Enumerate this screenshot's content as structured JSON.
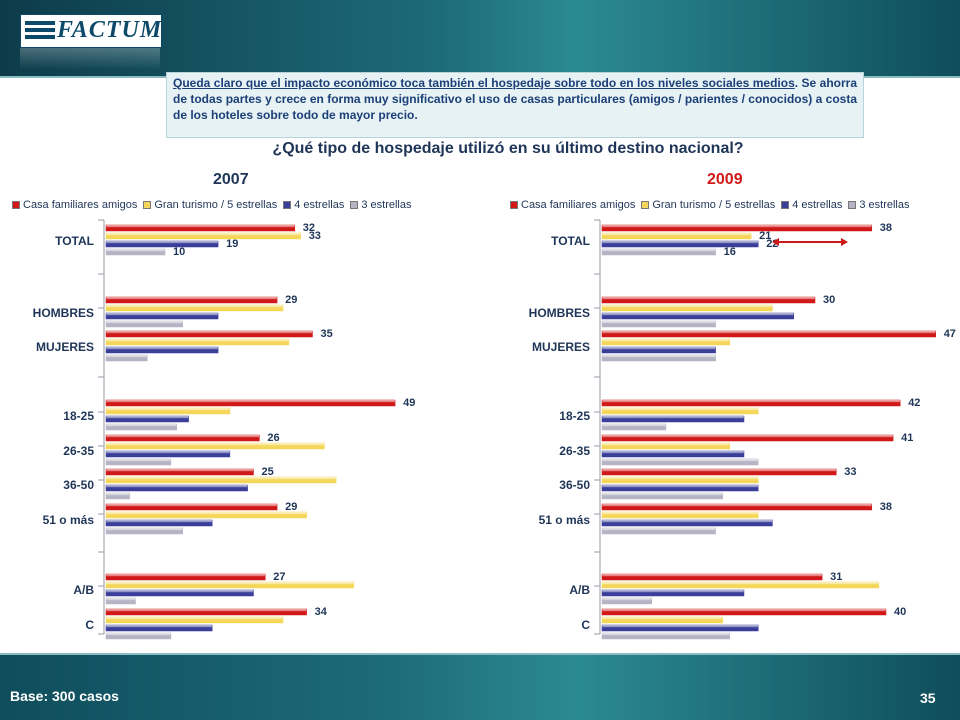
{
  "logo_text": "FACTUM",
  "note": {
    "underlined": "Queda claro que el impacto económico toca también el hospedaje sobre todo en los niveles sociales medios",
    "rest": ". Se ahorra de todas partes y crece en forma muy significativo el uso de casas particulares (amigos / parientes / conocidos) a costa de los hoteles sobre todo de mayor precio."
  },
  "question": "¿Qué tipo de hospedaje utilizó en su último destino nacional?",
  "footer": {
    "base": "Base: 300 casos",
    "page": "35"
  },
  "colors": {
    "red": "#d01818",
    "yellow": "#f4d75a",
    "blue": "#3a3f9a",
    "gray": "#b4b4c4",
    "year2007": "#1f3557",
    "year2009": "#d01818"
  },
  "chart_data": [
    {
      "type": "bar",
      "title": "2007",
      "legend": [
        "Casa familiares amigos",
        "Gran turismo / 5 estrellas",
        "4 estrellas",
        "3 estrellas"
      ],
      "legend_placement": "top",
      "groups": [
        {
          "name": "TOTAL",
          "values": [
            32,
            33,
            19,
            10
          ],
          "labels": [
            "32",
            "33",
            "19",
            "10"
          ]
        },
        {
          "name": "HOMBRES",
          "values": [
            29,
            30,
            19,
            13
          ],
          "labels": [
            "29",
            "",
            "",
            ""
          ]
        },
        {
          "name": "MUJERES",
          "values": [
            35,
            31,
            19,
            7
          ],
          "labels": [
            "35",
            "",
            "",
            ""
          ]
        },
        {
          "name": "18-25",
          "values": [
            49,
            21,
            14,
            12
          ],
          "labels": [
            "49",
            "",
            "",
            ""
          ]
        },
        {
          "name": "26-35",
          "values": [
            26,
            37,
            21,
            11
          ],
          "labels": [
            "26",
            "",
            "",
            ""
          ]
        },
        {
          "name": "36-50",
          "values": [
            25,
            39,
            24,
            4
          ],
          "labels": [
            "25",
            "",
            "",
            ""
          ]
        },
        {
          "name": "51 o más",
          "values": [
            29,
            34,
            18,
            13
          ],
          "labels": [
            "29",
            "",
            "",
            ""
          ]
        },
        {
          "name": "A/B",
          "values": [
            27,
            42,
            25,
            5
          ],
          "labels": [
            "27",
            "",
            "",
            ""
          ]
        },
        {
          "name": "C",
          "values": [
            34,
            30,
            18,
            11
          ],
          "labels": [
            "34",
            "",
            "",
            ""
          ]
        }
      ],
      "xlim": [
        0,
        55
      ]
    },
    {
      "type": "bar",
      "title": "2009",
      "legend": [
        "Casa familiares amigos",
        "Gran turismo / 5 estrellas",
        "4 estrellas",
        "3 estrellas"
      ],
      "legend_placement": "top",
      "groups": [
        {
          "name": "TOTAL",
          "values": [
            38,
            21,
            22,
            16
          ],
          "labels": [
            "38",
            "21",
            "22",
            "16"
          ]
        },
        {
          "name": "HOMBRES",
          "values": [
            30,
            24,
            27,
            16
          ],
          "labels": [
            "30",
            "",
            "",
            ""
          ]
        },
        {
          "name": "MUJERES",
          "values": [
            47,
            18,
            16,
            16
          ],
          "labels": [
            "47",
            "",
            "",
            ""
          ]
        },
        {
          "name": "18-25",
          "values": [
            42,
            22,
            20,
            9
          ],
          "labels": [
            "42",
            "",
            "",
            ""
          ]
        },
        {
          "name": "26-35",
          "values": [
            41,
            18,
            20,
            22
          ],
          "labels": [
            "41",
            "",
            "",
            ""
          ]
        },
        {
          "name": "36-50",
          "values": [
            33,
            22,
            22,
            17
          ],
          "labels": [
            "33",
            "",
            "",
            ""
          ]
        },
        {
          "name": "51 o más",
          "values": [
            38,
            22,
            24,
            16
          ],
          "labels": [
            "38",
            "",
            "",
            ""
          ]
        },
        {
          "name": "A/B",
          "values": [
            31,
            39,
            20,
            7
          ],
          "labels": [
            "31",
            "",
            "",
            ""
          ]
        },
        {
          "name": "C",
          "values": [
            40,
            17,
            22,
            18
          ],
          "labels": [
            "40",
            "",
            "",
            ""
          ]
        }
      ],
      "xlim": [
        0,
        55
      ]
    }
  ]
}
